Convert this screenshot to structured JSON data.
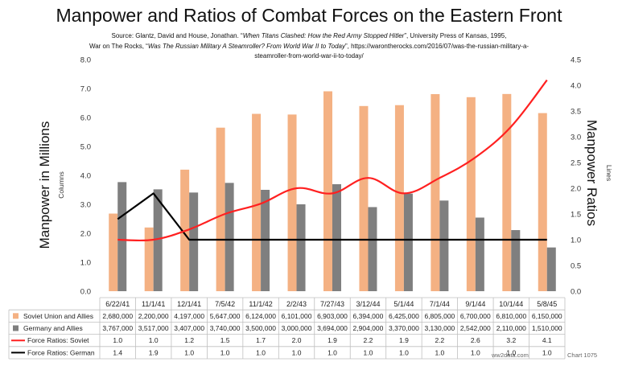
{
  "chart_data": {
    "type": "bar",
    "title": "Manpower and Ratios of Combat Forces on the Eastern Front",
    "source": {
      "prefix": "Source: Glantz, David and House, Jonathan. “",
      "book": "When Titans Clashed: How the Red Army Stopped Hitler",
      "mid": "”, University Press of Kansas, 1995,",
      "prefix2": "War on The Rocks, “",
      "article": "Was The Russian Military A Steamroller? From World War II to Today",
      "url1": "”, https://warontherocks.com/2016/07/was-the-russian-military-a-",
      "url2": "steamroller-from-world-war-ii-to-today/"
    },
    "ylabel_left": "Manpower in Millions",
    "ylabel_left_sub": "Columns",
    "ylabel_right": "Manpower Ratios",
    "ylabel_right_sub": "Lines",
    "ylim_left": [
      0,
      8
    ],
    "ylim_right": [
      0,
      4.5
    ],
    "left_ticks": [
      "0.0",
      "1.0",
      "2.0",
      "3.0",
      "4.0",
      "5.0",
      "6.0",
      "7.0",
      "8.0"
    ],
    "right_ticks": [
      "0.0",
      "0.5",
      "1.0",
      "1.5",
      "2.0",
      "2.5",
      "3.0",
      "3.5",
      "4.0",
      "4.5"
    ],
    "categories": [
      "6/22/41",
      "11/1/41",
      "12/1/41",
      "7/5/42",
      "11/1/42",
      "2/2/43",
      "7/27/43",
      "3/12/44",
      "5/1/44",
      "7/1/44",
      "9/1/44",
      "10/1/44",
      "5/8/45"
    ],
    "series": [
      {
        "name": "Soviet Union and Allies",
        "kind": "bar",
        "color": "#F4B183",
        "values": [
          2680000,
          2200000,
          4197000,
          5647000,
          6124000,
          6101000,
          6903000,
          6394000,
          6425000,
          6805000,
          6700000,
          6810000,
          6150000
        ],
        "labels": [
          "2,680,000",
          "2,200,000",
          "4,197,000",
          "5,647,000",
          "6,124,000",
          "6,101,000",
          "6,903,000",
          "6,394,000",
          "6,425,000",
          "6,805,000",
          "6,700,000",
          "6,810,000",
          "6,150,000"
        ]
      },
      {
        "name": "Germany and Allies",
        "kind": "bar",
        "color": "#7F7F7F",
        "values": [
          3767000,
          3517000,
          3407000,
          3740000,
          3500000,
          3000000,
          3694000,
          2904000,
          3370000,
          3130000,
          2542000,
          2110000,
          1510000
        ],
        "labels": [
          "3,767,000",
          "3,517,000",
          "3,407,000",
          "3,740,000",
          "3,500,000",
          "3,000,000",
          "3,694,000",
          "2,904,000",
          "3,370,000",
          "3,130,000",
          "2,542,000",
          "2,110,000",
          "1,510,000"
        ]
      },
      {
        "name": "Force Ratios: Soviet",
        "kind": "line",
        "color": "#FF2020",
        "values": [
          1.0,
          1.0,
          1.2,
          1.5,
          1.7,
          2.0,
          1.9,
          2.2,
          1.9,
          2.2,
          2.6,
          3.2,
          4.1
        ],
        "labels": [
          "1.0",
          "1.0",
          "1.2",
          "1.5",
          "1.7",
          "2.0",
          "1.9",
          "2.2",
          "1.9",
          "2.2",
          "2.6",
          "3.2",
          "4.1"
        ]
      },
      {
        "name": "Force Ratios: German",
        "kind": "line",
        "color": "#000000",
        "values": [
          1.4,
          1.9,
          1.0,
          1.0,
          1.0,
          1.0,
          1.0,
          1.0,
          1.0,
          1.0,
          1.0,
          1.0,
          1.0
        ],
        "labels": [
          "1.4",
          "1.9",
          "1.0",
          "1.0",
          "1.0",
          "1.0",
          "1.0",
          "1.0",
          "1.0",
          "1.0",
          "1.0",
          "1.0",
          "1.0"
        ]
      }
    ],
    "legend": "data-table"
  },
  "footer": {
    "site": "ww2data.com",
    "chart_id": "Chart 1075"
  }
}
